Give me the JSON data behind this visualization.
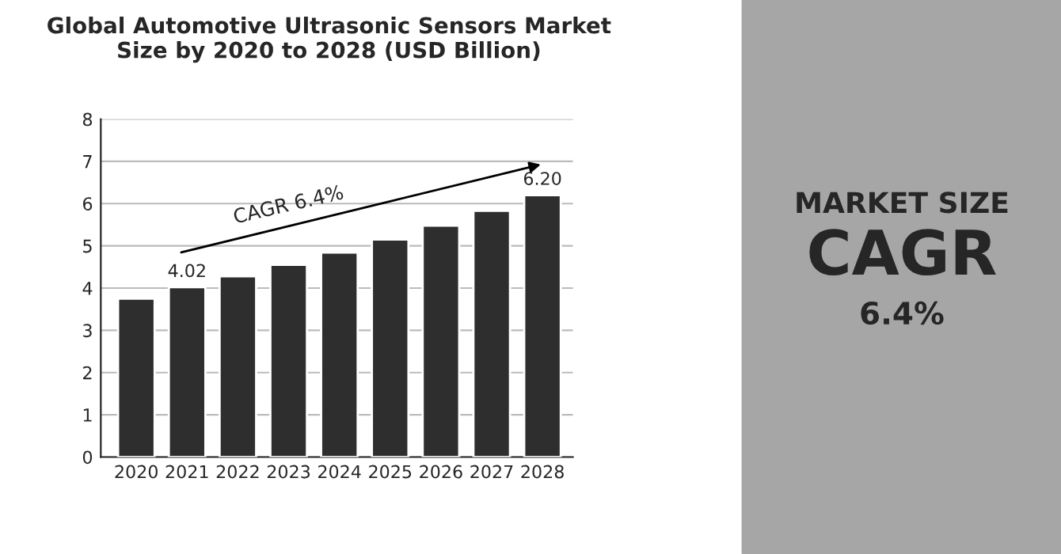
{
  "chart_data": {
    "type": "bar",
    "title": "Global Automotive Ultrasonic Sensors Market\nSize by 2020 to 2028 (USD Billion)",
    "categories": [
      "2020",
      "2021",
      "2022",
      "2023",
      "2024",
      "2025",
      "2026",
      "2027",
      "2028"
    ],
    "values": [
      3.75,
      4.02,
      4.28,
      4.55,
      4.84,
      5.15,
      5.48,
      5.83,
      6.2
    ],
    "value_labels": [
      null,
      "4.02",
      null,
      null,
      null,
      null,
      null,
      null,
      "6.20"
    ],
    "color": "#2e2e2e",
    "ylim": [
      0,
      8
    ],
    "yticks": [
      0,
      1,
      2,
      3,
      4,
      5,
      6,
      7,
      8
    ],
    "grid": "y",
    "annotations": [
      "CAGR 6.4%",
      "MARKET SIZE",
      "CAGR",
      "6.4%"
    ]
  }
}
